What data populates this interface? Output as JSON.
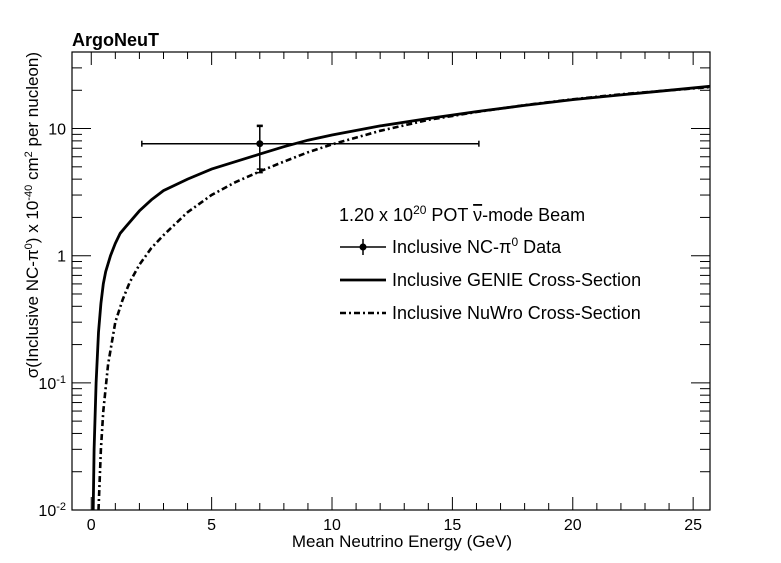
{
  "chart_data": {
    "type": "line",
    "title": "ArgoNeuT",
    "xlabel": "Mean Neutrino Energy (GeV)",
    "ylabel_parts": [
      "σ(Inclusive NC-π",
      "0",
      ") x 10",
      "-40",
      " cm",
      "2",
      " per nucleon)"
    ],
    "xlim": [
      -0.8,
      25.7
    ],
    "ylim": [
      0.01,
      40
    ],
    "yscale": "log",
    "grid": false,
    "legend_placement": "center-right",
    "x_ticks": [
      0,
      5,
      10,
      15,
      20,
      25
    ],
    "x_tick_labels": [
      "0",
      "5",
      "10",
      "15",
      "20",
      "25"
    ],
    "y_ticks": [
      {
        "value": 0.01,
        "base": "10",
        "exp": "-2"
      },
      {
        "value": 0.1,
        "base": "10",
        "exp": "-1"
      },
      {
        "value": 1,
        "base": "1",
        "exp": ""
      },
      {
        "value": 10,
        "base": "10",
        "exp": ""
      }
    ],
    "legend_header_parts": [
      "1.20 x 10",
      "20",
      " POT ",
      "ν",
      "-mode Beam"
    ],
    "series": [
      {
        "label_parts": [
          "Inclusive NC-π",
          "0",
          " Data"
        ],
        "style": "marker-errorbar",
        "points": [
          {
            "x": 7.0,
            "y": 7.6,
            "xerr_low": 4.9,
            "xerr_high": 9.1,
            "yerr_low": 2.8,
            "yerr_high": 2.8,
            "ysyst_low": 3.1,
            "ysyst_high": 3.0
          }
        ]
      },
      {
        "label_parts": [
          "Inclusive GENIE Cross-Section"
        ],
        "style": "solid",
        "x": [
          0.08,
          0.12,
          0.2,
          0.3,
          0.4,
          0.5,
          0.6,
          0.8,
          1.0,
          1.2,
          1.5,
          2.0,
          2.5,
          3.0,
          4.0,
          5.0,
          6.0,
          7.0,
          8.0,
          9.0,
          10.0,
          12.0,
          14.0,
          16.0,
          18.0,
          20.0,
          22.0,
          24.0,
          25.7
        ],
        "y": [
          0.01,
          0.03,
          0.1,
          0.25,
          0.42,
          0.6,
          0.75,
          1.0,
          1.25,
          1.5,
          1.75,
          2.25,
          2.75,
          3.25,
          4.0,
          4.8,
          5.5,
          6.3,
          7.2,
          8.1,
          8.9,
          10.5,
          12.0,
          13.6,
          15.2,
          16.9,
          18.4,
          20.0,
          21.5
        ]
      },
      {
        "label_parts": [
          "Inclusive NuWro Cross-Section"
        ],
        "style": "dash-dot",
        "x": [
          0.3,
          0.4,
          0.5,
          0.7,
          1.0,
          1.3,
          1.6,
          2.0,
          2.5,
          3.0,
          4.0,
          5.0,
          6.0,
          7.0,
          8.0,
          9.0,
          10.0,
          12.0,
          14.0,
          16.0,
          18.0,
          20.0,
          22.0,
          24.0,
          25.7
        ],
        "y": [
          0.01,
          0.03,
          0.06,
          0.14,
          0.3,
          0.45,
          0.62,
          0.85,
          1.15,
          1.45,
          2.2,
          3.0,
          3.8,
          4.6,
          5.5,
          6.5,
          7.5,
          9.6,
          11.7,
          13.5,
          15.3,
          17.0,
          18.6,
          20.0,
          21.2
        ]
      }
    ]
  }
}
